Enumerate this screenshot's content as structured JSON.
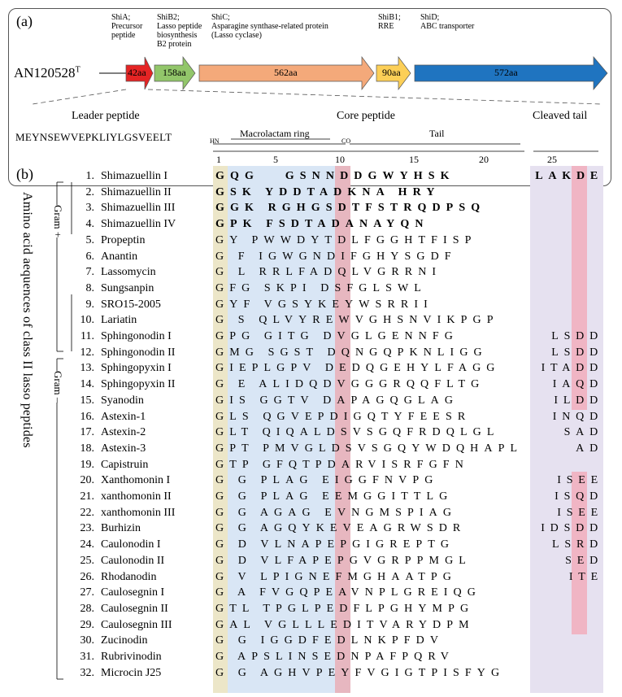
{
  "panel_a": {
    "label": "(a)",
    "strain": "AN120528",
    "strain_sup": "T",
    "genes": [
      {
        "name": "ShiA;",
        "desc": [
          "Precursor",
          "peptide"
        ],
        "aa": "42aa",
        "color": "#e52424"
      },
      {
        "name": "ShiB2;",
        "desc": [
          "Lasso peptide",
          "biosynthesis",
          "B2 protein"
        ],
        "aa": "158aa",
        "color": "#92c66a"
      },
      {
        "name": "ShiC;",
        "desc": [
          "Asparagine synthase-related protein",
          "(Lasso cyclase)"
        ],
        "aa": "562aa",
        "color": "#f4a97a"
      },
      {
        "name": "ShiB1;",
        "desc": [
          "RRE"
        ],
        "aa": "90aa",
        "color": "#fccf57"
      },
      {
        "name": "ShiD;",
        "desc": [
          "ABC transporter"
        ],
        "aa": "572aa",
        "color": "#1f74c0"
      }
    ],
    "leader_title": "Leader peptide",
    "leader_seq": "MEYNSEWVEPKLIYLGSVEELT",
    "core_title": "Core peptide",
    "cleaved_title": "Cleaved tail",
    "ring_label": "Macrolactam ring",
    "tail_label": "Tail",
    "hn": "HN",
    "co": "CO",
    "ticks": [
      "1",
      "5",
      "10",
      "15",
      "20",
      "25"
    ]
  },
  "panel_b": {
    "label": "(b)",
    "side_title": "Amino acid aequences  of class II lasso peptides",
    "gram_pos": "Gram +",
    "gram_neg": "Gram –",
    "rows": [
      {
        "num": "1.",
        "name": "Shimazuellin I",
        "seq": "GQG   GSNNDDGWYHSK",
        "tail": "LAKDE",
        "bold": true
      },
      {
        "num": "2.",
        "name": "Shimazuellin II",
        "seq": "GSK YDDTADKNA HRY",
        "tail": "",
        "bold": true
      },
      {
        "num": "3.",
        "name": "Shimazuellin III",
        "seq": "GGK RGHGSDTFSTRQDPSQ",
        "tail": "",
        "bold": true
      },
      {
        "num": "4.",
        "name": "Shimazuellin IV",
        "seq": "GPK FSDTADANAYQN",
        "tail": "",
        "bold": true
      },
      {
        "num": "5.",
        "name": "Propeptin",
        "seq": "GY PWWDYTDLFGGHTFISP",
        "tail": ""
      },
      {
        "num": "6.",
        "name": "Anantin",
        "seq": "G F IGWGNDIFGHYSGDF",
        "tail": ""
      },
      {
        "num": "7.",
        "name": "Lassomycin",
        "seq": "G L RRLFADQLVGRRNI",
        "tail": ""
      },
      {
        "num": "8.",
        "name": "Sungsanpin",
        "seq": "GFG SKPI DSFGLSWL",
        "tail": ""
      },
      {
        "num": "9.",
        "name": "SRO15-2005",
        "seq": "GYF VGSYKEYWSRRII",
        "tail": ""
      },
      {
        "num": "10.",
        "name": "Lariatin",
        "seq": "G S QLVYREWVGHSNVIKPGP",
        "tail": ""
      },
      {
        "num": "11.",
        "name": "Sphingonodin I",
        "seq": "GPG GITG DVGLGENNFG",
        "tail": "LSDD"
      },
      {
        "num": "12.",
        "name": "Sphingonodin II",
        "seq": "GMG SGST DQNGQPKNLIGG",
        "tail": "LSDD"
      },
      {
        "num": "13.",
        "name": "Sphingopyxin I",
        "seq": "GIEPLGPV DEDQGEHYLFAGG",
        "tail": "ITADD"
      },
      {
        "num": "14.",
        "name": "Sphingopyxin II",
        "seq": "G E ALIDQDVGGGRQQFLTG",
        "tail": "IAQD"
      },
      {
        "num": "15.",
        "name": "Syanodin",
        "seq": "GIS GGTV DAPAGQGLAG",
        "tail": "ILDD"
      },
      {
        "num": "16.",
        "name": "Astexin-1",
        "seq": "GLS QGVEPDIGQTYFEESR",
        "tail": "INQD"
      },
      {
        "num": "17.",
        "name": "Astexin-2",
        "seq": "GLT QIQALDSVSGQFRDQLGL",
        "tail": "SAD"
      },
      {
        "num": "18.",
        "name": "Astexin-3",
        "seq": "GPT PMVGLDSVSGQYWDQHAPL",
        "tail": "AD"
      },
      {
        "num": "19.",
        "name": "Capistruin",
        "seq": "GTP GFQTPDARVISRFGFN",
        "tail": ""
      },
      {
        "num": "20.",
        "name": "Xanthomonin I",
        "seq": "G G PLAG EIGGFNVPG",
        "tail": "ISEE"
      },
      {
        "num": "21.",
        "name": "xanthomonin II",
        "seq": "G G PLAG EEMGGITTLG",
        "tail": "ISQD"
      },
      {
        "num": "22.",
        "name": "xanthomonin III",
        "seq": "G G AGAG EVNGMSPIAG",
        "tail": "ISEE"
      },
      {
        "num": "23.",
        "name": "Burhizin",
        "seq": "G G AGQYKEVEAGRWSDR",
        "tail": "IDSDD"
      },
      {
        "num": "24.",
        "name": "Caulonodin I",
        "seq": "G D VLNAPEPGIGREPTG",
        "tail": "LSRD"
      },
      {
        "num": "25.",
        "name": "Caulonodin II",
        "seq": "G D VLFAPEPGVGRPPMGL",
        "tail": "SED"
      },
      {
        "num": "26.",
        "name": "Rhodanodin",
        "seq": "G V LPIGNEFMGHAATPG",
        "tail": "ITE"
      },
      {
        "num": "27.",
        "name": "Caulosegnin I",
        "seq": "G A FVGQPEAVNPLGREIQG",
        "tail": ""
      },
      {
        "num": "28.",
        "name": "Caulosegnin II",
        "seq": "GTL TPGLPEDFLPGHYMPG",
        "tail": ""
      },
      {
        "num": "29.",
        "name": "Caulosegnin III",
        "seq": "GAL VGLLLEDITVARYDPM",
        "tail": ""
      },
      {
        "num": "30.",
        "name": "Zucinodin",
        "seq": "G G IGGDFEDLNKPFDV",
        "tail": ""
      },
      {
        "num": "31.",
        "name": "Rubrivinodin",
        "seq": "G APSLINSEDNPAFPQRV",
        "tail": ""
      },
      {
        "num": "32.",
        "name": "Microcin J25",
        "seq": "G G AGHVPEYFVGIGTPISFYG",
        "tail": ""
      }
    ]
  },
  "colors": {
    "g_column": "#ece6c8",
    "ring_band": "#d9e6f5",
    "acid_column": "#e7b7c0",
    "tail_band": "#e6e1f0",
    "tail_acid": "#f0b5c4"
  }
}
